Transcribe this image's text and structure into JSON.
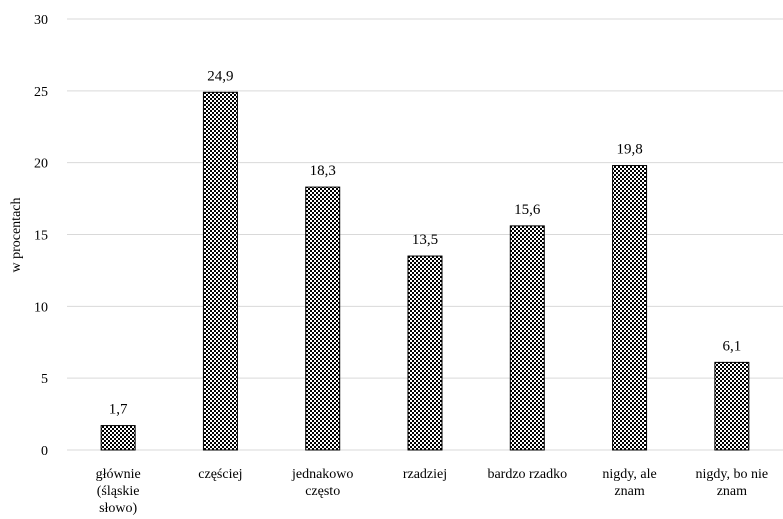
{
  "chart_data": {
    "type": "bar",
    "categories": [
      [
        "głównie",
        "(śląskie",
        "słowo)"
      ],
      [
        "częściej"
      ],
      [
        "jednakowo",
        "często"
      ],
      [
        "rzadziej"
      ],
      [
        "bardzo rzadko"
      ],
      [
        "nigdy, ale",
        "znam"
      ],
      [
        "nigdy, bo nie",
        "znam"
      ]
    ],
    "values": [
      1.7,
      24.9,
      18.3,
      13.5,
      15.6,
      19.8,
      6.1
    ],
    "value_labels": [
      "1,7",
      "24,9",
      "18,3",
      "13,5",
      "15,6",
      "19,8",
      "6,1"
    ],
    "title": "",
    "xlabel": "",
    "ylabel": "w procentach",
    "ylim": [
      0,
      30
    ],
    "yticks": [
      0,
      5,
      10,
      15,
      20,
      25,
      30
    ],
    "grid": true,
    "legend": "none",
    "bar_pattern": "checkered black and white"
  }
}
